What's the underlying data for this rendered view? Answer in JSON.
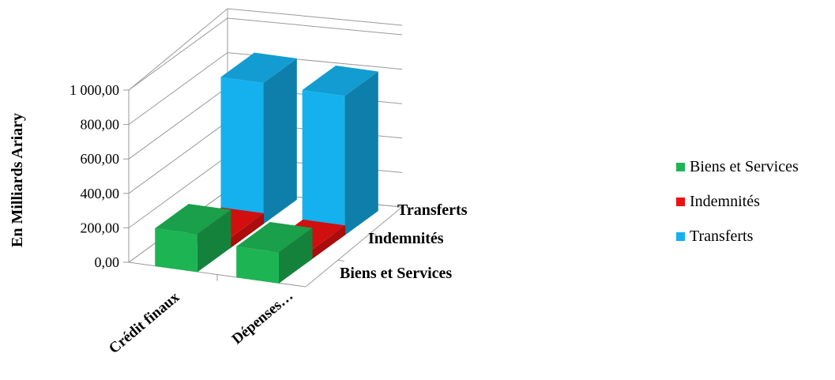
{
  "chart_data": {
    "type": "bar",
    "title": "",
    "xlabel": "",
    "ylabel": "En Milliards  Ariary",
    "ylim": [
      0,
      1000
    ],
    "yticks": [
      "0,00",
      "200,00",
      "400,00",
      "600,00",
      "800,00",
      "1 000,00"
    ],
    "grid": true,
    "three_d": true,
    "legend_position": "right",
    "categories": [
      "Crédit finaux",
      "Dépenses…"
    ],
    "depth_labels": [
      "Biens et Services",
      "Indemnités",
      "Transferts"
    ],
    "series": [
      {
        "name": "Biens et Services",
        "color": "#1DB554",
        "values": [
          220,
          180
        ]
      },
      {
        "name": "Indemnités",
        "color": "#EE1111",
        "values": [
          60,
          55
        ]
      },
      {
        "name": "Transferts",
        "color": "#14B1EE",
        "values": [
          820,
          810
        ]
      }
    ]
  }
}
